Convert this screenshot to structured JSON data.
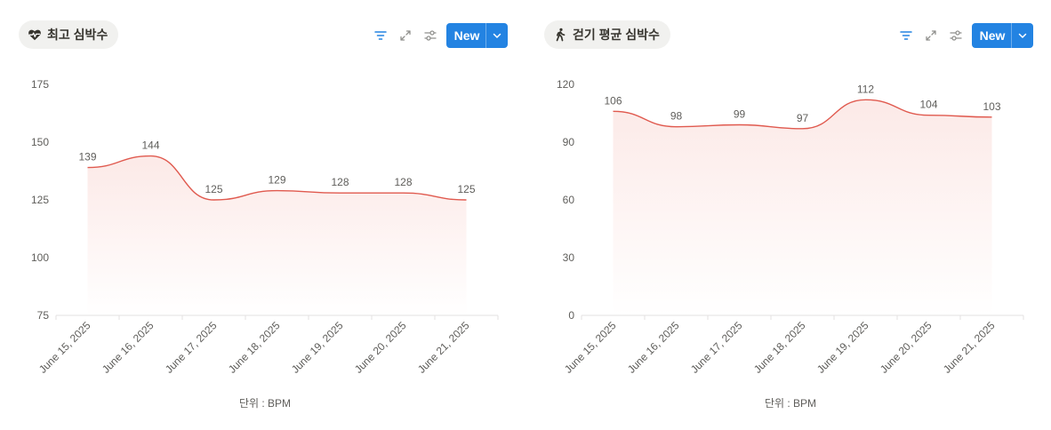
{
  "colors": {
    "accent": "#2383e2",
    "line": "#e05a4f",
    "fill": "#fbe2df"
  },
  "panels": [
    {
      "title": "최고 심박수",
      "icon": "heart-pulse-icon",
      "new_label": "New",
      "unit_label": "단위 : BPM",
      "chart_data": {
        "type": "area",
        "categories": [
          "June 15, 2025",
          "June 16, 2025",
          "June 17, 2025",
          "June 18, 2025",
          "June 19, 2025",
          "June 20, 2025",
          "June 21, 2025"
        ],
        "values": [
          139,
          144,
          125,
          129,
          128,
          128,
          125
        ],
        "ylim": [
          75,
          175
        ],
        "yticks": [
          75,
          100,
          125,
          150,
          175
        ],
        "xlabel": "단위 : BPM"
      }
    },
    {
      "title": "걷기 평균 심박수",
      "icon": "walking-person-icon",
      "new_label": "New",
      "unit_label": "단위 : BPM",
      "chart_data": {
        "type": "area",
        "categories": [
          "June 15, 2025",
          "June 16, 2025",
          "June 17, 2025",
          "June 18, 2025",
          "June 19, 2025",
          "June 20, 2025",
          "June 21, 2025"
        ],
        "values": [
          106,
          98,
          99,
          97,
          112,
          104,
          103
        ],
        "ylim": [
          0,
          120
        ],
        "yticks": [
          0,
          30,
          60,
          90,
          120
        ],
        "xlabel": "단위 : BPM"
      }
    }
  ]
}
